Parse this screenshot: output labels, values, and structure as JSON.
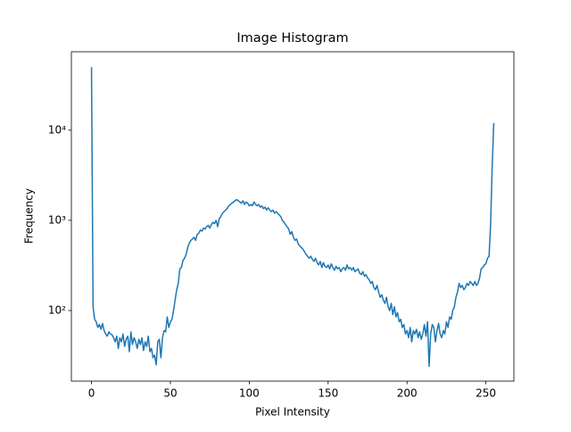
{
  "chart_data": {
    "type": "line",
    "title": "Image Histogram",
    "x_label": "Pixel Intensity",
    "y_label": "Frequency",
    "log_y": true,
    "color": "#1f77b4",
    "xlim": [
      -12.75,
      267.75
    ],
    "ylim": [
      16.5,
      74000
    ],
    "xticks": [
      0,
      50,
      100,
      150,
      200,
      250
    ],
    "yticks": [
      {
        "value": 100,
        "label": "10²"
      },
      {
        "value": 1000,
        "label": "10³"
      },
      {
        "value": 10000,
        "label": "10⁴"
      }
    ],
    "x": [
      0,
      1,
      2,
      3,
      4,
      5,
      6,
      7,
      8,
      9,
      10,
      11,
      12,
      13,
      14,
      15,
      16,
      17,
      18,
      19,
      20,
      21,
      22,
      23,
      24,
      25,
      26,
      27,
      28,
      29,
      30,
      31,
      32,
      33,
      34,
      35,
      36,
      37,
      38,
      39,
      40,
      41,
      42,
      43,
      44,
      45,
      46,
      47,
      48,
      49,
      50,
      51,
      52,
      53,
      54,
      55,
      56,
      57,
      58,
      59,
      60,
      61,
      62,
      63,
      64,
      65,
      66,
      67,
      68,
      69,
      70,
      71,
      72,
      73,
      74,
      75,
      76,
      77,
      78,
      79,
      80,
      81,
      82,
      83,
      84,
      85,
      86,
      87,
      88,
      89,
      90,
      91,
      92,
      93,
      94,
      95,
      96,
      97,
      98,
      99,
      100,
      101,
      102,
      103,
      104,
      105,
      106,
      107,
      108,
      109,
      110,
      111,
      112,
      113,
      114,
      115,
      116,
      117,
      118,
      119,
      120,
      121,
      122,
      123,
      124,
      125,
      126,
      127,
      128,
      129,
      130,
      131,
      132,
      133,
      134,
      135,
      136,
      137,
      138,
      139,
      140,
      141,
      142,
      143,
      144,
      145,
      146,
      147,
      148,
      149,
      150,
      151,
      152,
      153,
      154,
      155,
      156,
      157,
      158,
      159,
      160,
      161,
      162,
      163,
      164,
      165,
      166,
      167,
      168,
      169,
      170,
      171,
      172,
      173,
      174,
      175,
      176,
      177,
      178,
      179,
      180,
      181,
      182,
      183,
      184,
      185,
      186,
      187,
      188,
      189,
      190,
      191,
      192,
      193,
      194,
      195,
      196,
      197,
      198,
      199,
      200,
      201,
      202,
      203,
      204,
      205,
      206,
      207,
      208,
      209,
      210,
      211,
      212,
      213,
      214,
      215,
      216,
      217,
      218,
      219,
      220,
      221,
      222,
      223,
      224,
      225,
      226,
      227,
      228,
      229,
      230,
      231,
      232,
      233,
      234,
      235,
      236,
      237,
      238,
      239,
      240,
      241,
      242,
      243,
      244,
      245,
      246,
      247,
      248,
      249,
      250,
      251,
      252,
      253,
      254,
      255
    ],
    "values": [
      50000,
      110,
      80,
      75,
      65,
      70,
      62,
      72,
      60,
      55,
      52,
      58,
      55,
      54,
      50,
      45,
      52,
      38,
      50,
      45,
      55,
      40,
      48,
      52,
      35,
      58,
      42,
      50,
      45,
      38,
      48,
      42,
      50,
      36,
      45,
      40,
      52,
      35,
      38,
      30,
      32,
      25,
      45,
      48,
      30,
      50,
      60,
      58,
      85,
      65,
      75,
      80,
      100,
      130,
      170,
      200,
      290,
      300,
      360,
      380,
      420,
      500,
      560,
      600,
      620,
      650,
      600,
      700,
      720,
      780,
      760,
      820,
      800,
      850,
      880,
      820,
      900,
      950,
      920,
      1000,
      850,
      1050,
      1100,
      1200,
      1250,
      1300,
      1350,
      1450,
      1500,
      1550,
      1600,
      1650,
      1700,
      1650,
      1600,
      1550,
      1650,
      1500,
      1600,
      1550,
      1450,
      1500,
      1450,
      1600,
      1500,
      1450,
      1500,
      1400,
      1450,
      1350,
      1400,
      1300,
      1380,
      1300,
      1250,
      1300,
      1200,
      1250,
      1200,
      1150,
      1100,
      1000,
      950,
      900,
      850,
      800,
      700,
      750,
      650,
      600,
      620,
      550,
      520,
      500,
      480,
      450,
      420,
      400,
      380,
      400,
      370,
      350,
      380,
      340,
      320,
      350,
      300,
      340,
      310,
      300,
      320,
      290,
      330,
      300,
      280,
      310,
      290,
      300,
      270,
      290,
      300,
      280,
      320,
      290,
      300,
      280,
      300,
      270,
      280,
      290,
      260,
      250,
      270,
      240,
      250,
      230,
      220,
      200,
      210,
      180,
      170,
      190,
      160,
      140,
      150,
      130,
      120,
      140,
      110,
      100,
      120,
      90,
      110,
      85,
      95,
      75,
      80,
      65,
      70,
      55,
      60,
      50,
      65,
      45,
      60,
      55,
      62,
      50,
      58,
      48,
      55,
      70,
      52,
      75,
      24,
      55,
      70,
      65,
      45,
      60,
      72,
      55,
      50,
      60,
      55,
      75,
      65,
      85,
      80,
      100,
      110,
      140,
      160,
      200,
      180,
      190,
      170,
      180,
      200,
      190,
      210,
      200,
      190,
      210,
      190,
      200,
      230,
      290,
      300,
      320,
      330,
      380,
      400,
      900,
      4000,
      12000
    ]
  }
}
